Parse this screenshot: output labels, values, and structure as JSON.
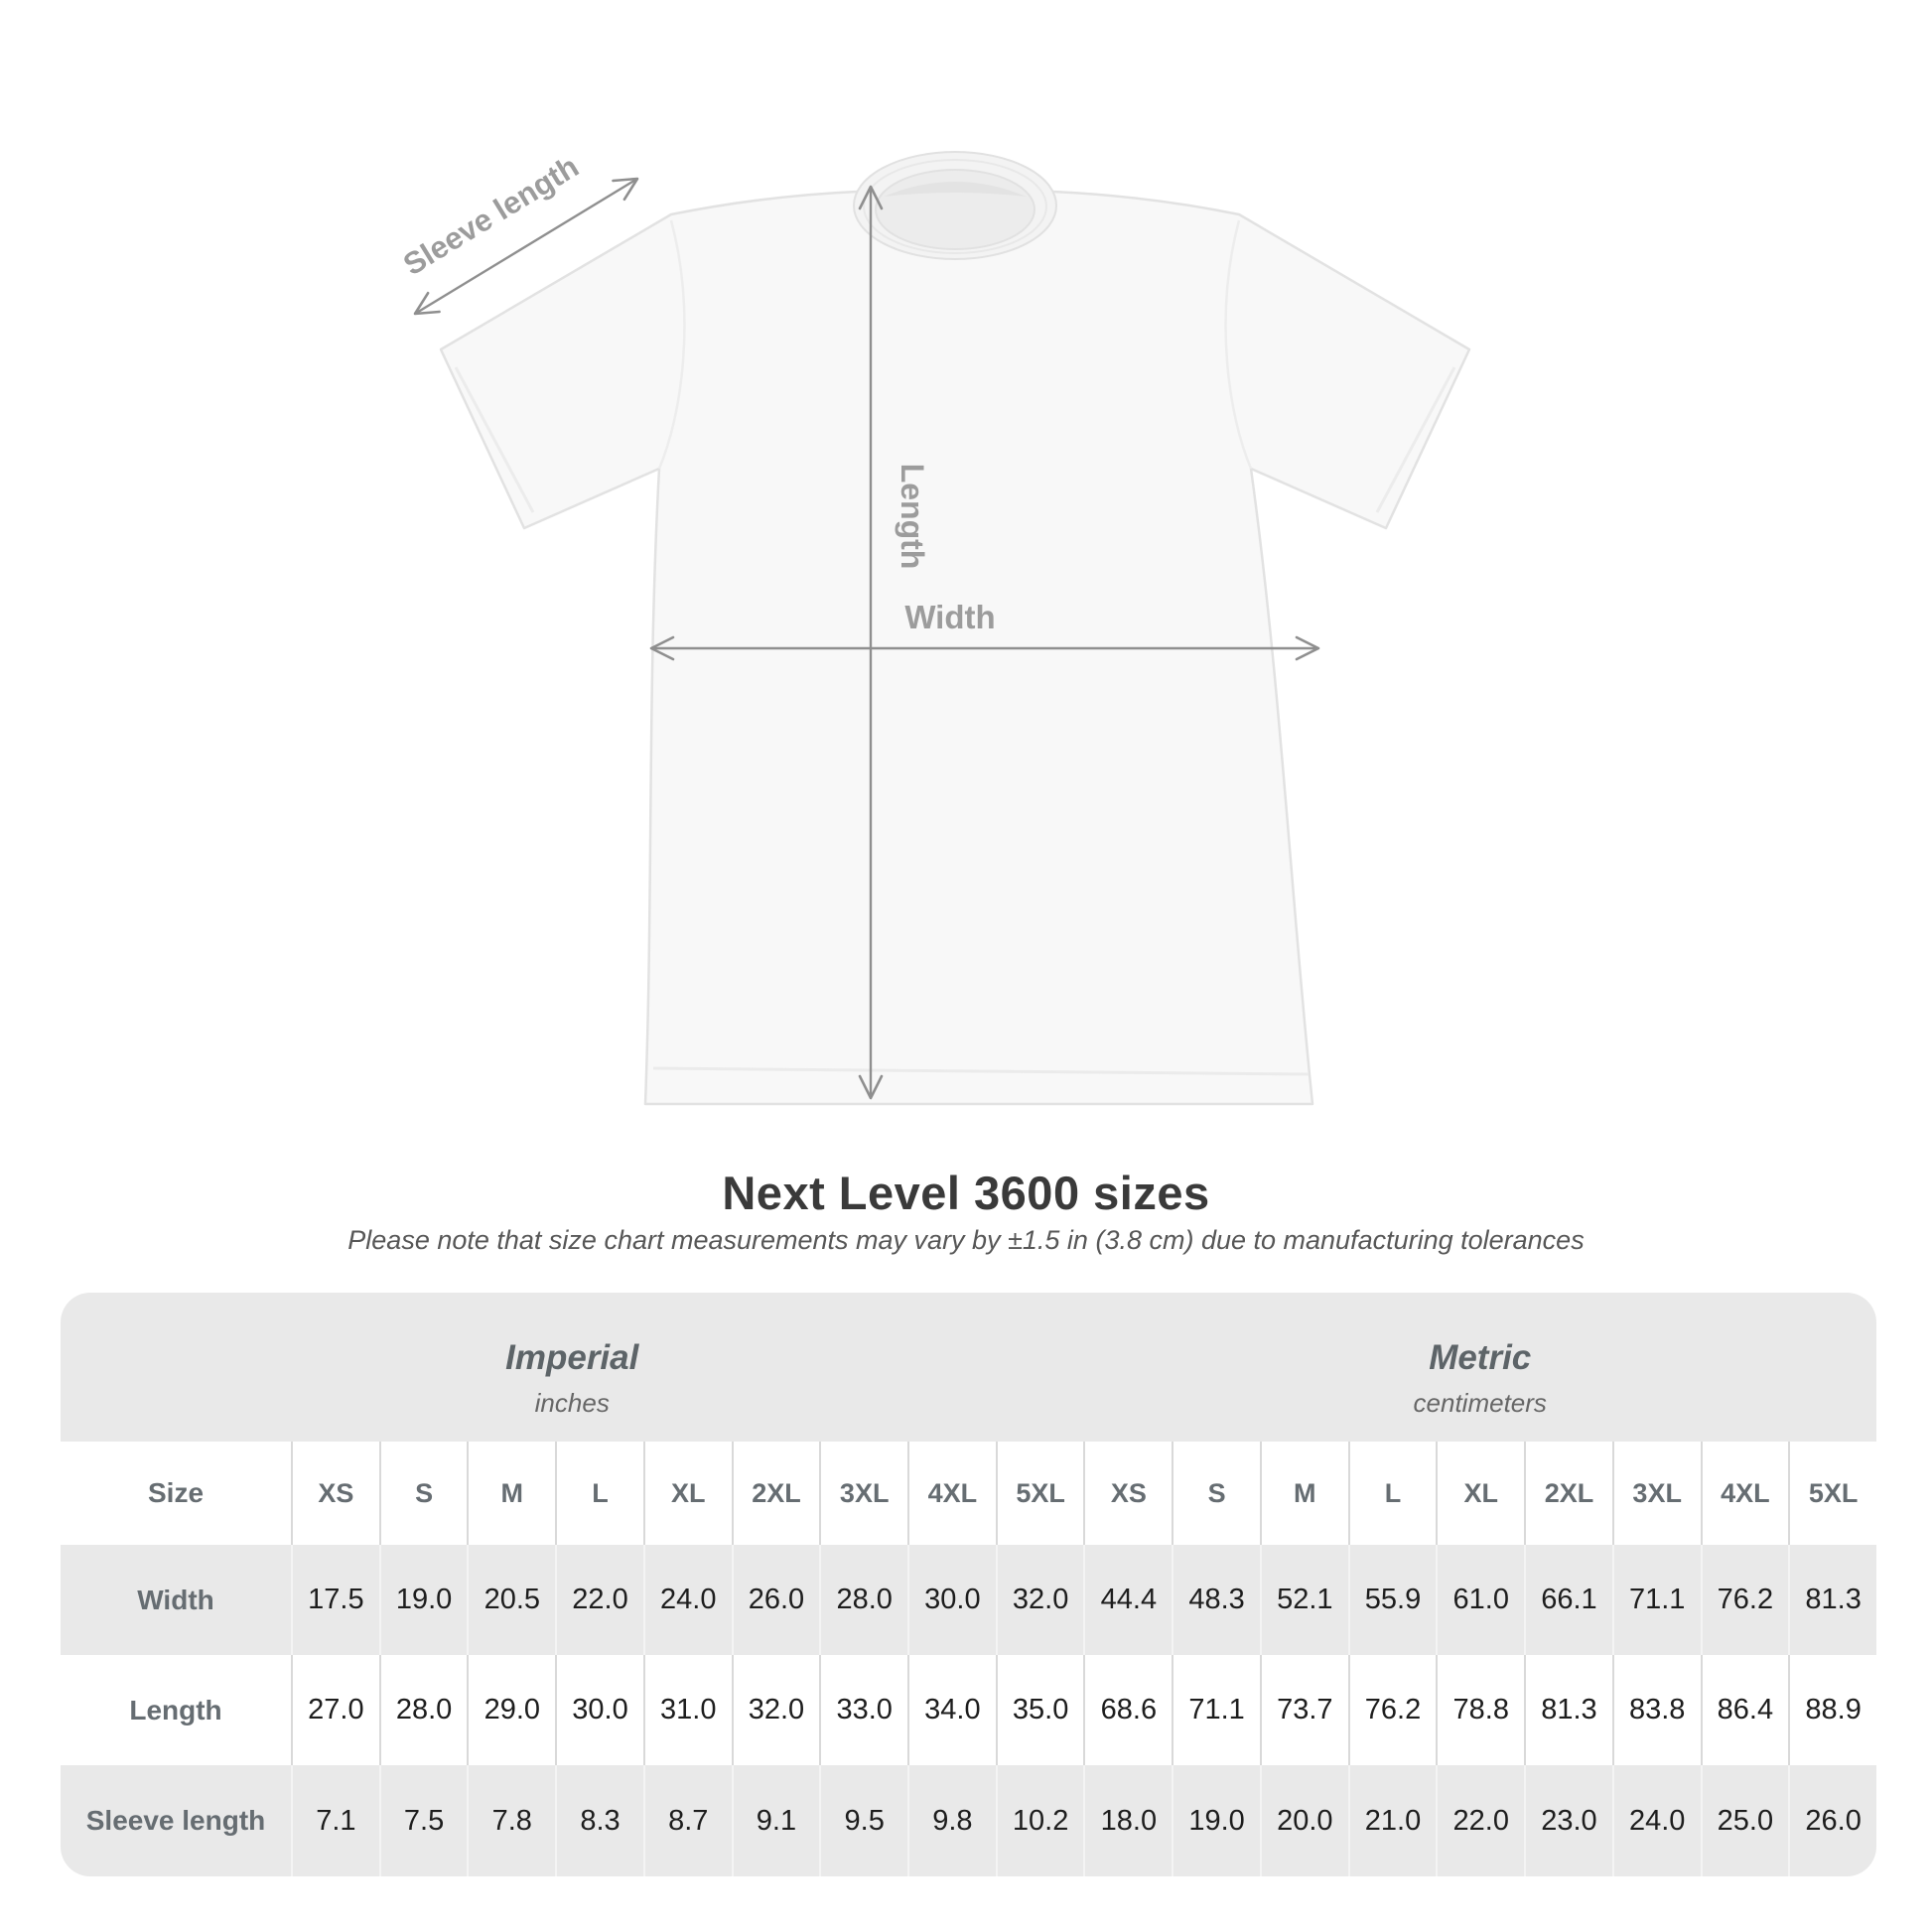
{
  "diagram": {
    "sleeve_label": "Sleeve length",
    "length_label": "Length",
    "width_label": "Width"
  },
  "title": "Next Level 3600 sizes",
  "subtitle": "Please note that size chart measurements may vary by ±1.5 in (3.8 cm) due to manufacturing tolerances",
  "table": {
    "unit_groups": [
      {
        "name": "Imperial",
        "unit": "inches"
      },
      {
        "name": "Metric",
        "unit": "centimeters"
      }
    ],
    "size_label": "Size",
    "sizes": [
      "XS",
      "S",
      "M",
      "L",
      "XL",
      "2XL",
      "3XL",
      "4XL",
      "5XL"
    ],
    "rows": [
      {
        "label": "Width",
        "imperial": [
          "17.5",
          "19.0",
          "20.5",
          "22.0",
          "24.0",
          "26.0",
          "28.0",
          "30.0",
          "32.0"
        ],
        "metric": [
          "44.4",
          "48.3",
          "52.1",
          "55.9",
          "61.0",
          "66.1",
          "71.1",
          "76.2",
          "81.3"
        ]
      },
      {
        "label": "Length",
        "imperial": [
          "27.0",
          "28.0",
          "29.0",
          "30.0",
          "31.0",
          "32.0",
          "33.0",
          "34.0",
          "35.0"
        ],
        "metric": [
          "68.6",
          "71.1",
          "73.7",
          "76.2",
          "78.8",
          "81.3",
          "83.8",
          "86.4",
          "88.9"
        ]
      },
      {
        "label": "Sleeve length",
        "imperial": [
          "7.1",
          "7.5",
          "7.8",
          "8.3",
          "8.7",
          "9.1",
          "9.5",
          "9.8",
          "10.2"
        ],
        "metric": [
          "18.0",
          "19.0",
          "20.0",
          "21.0",
          "22.0",
          "23.0",
          "24.0",
          "25.0",
          "26.0"
        ]
      }
    ]
  },
  "colors": {
    "arrow": "#8f8f8f",
    "diagram_label": "#9c9c9c",
    "table_bg": "#e9e9e9",
    "row_alt_bg": "#ffffff",
    "header_text": "#666d72",
    "value_text": "#1d1d1d",
    "title_text": "#3a3a3a",
    "subtitle_text": "#575757"
  }
}
